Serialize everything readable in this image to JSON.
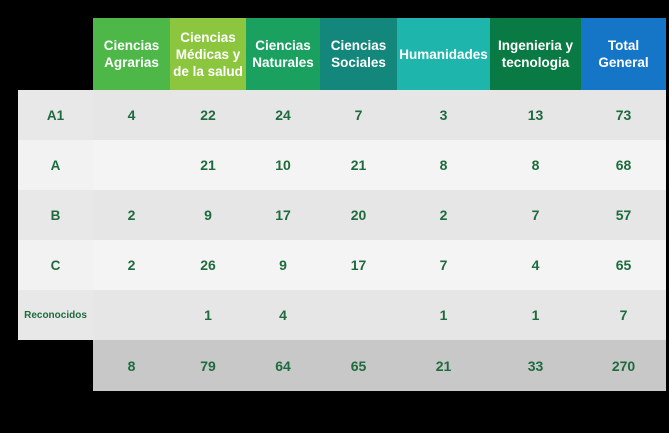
{
  "chart_data": {
    "type": "table",
    "columns": [
      {
        "label": "Ciencias Agrarias",
        "color": "#4db848"
      },
      {
        "label": "Ciencias Médicas y de la salud",
        "color": "#8cc63f"
      },
      {
        "label": "Ciencias Naturales",
        "color": "#1aa160"
      },
      {
        "label": "Ciencias Sociales",
        "color": "#14877d"
      },
      {
        "label": "Humanidades",
        "color": "#1eb5ac"
      },
      {
        "label": "Ingenieria y tecnologia",
        "color": "#0a7a44"
      },
      {
        "label": "Total General",
        "color": "#1576c8"
      }
    ],
    "rows": [
      {
        "label": "A1",
        "values": [
          "4",
          "22",
          "24",
          "7",
          "3",
          "13",
          "73"
        ]
      },
      {
        "label": "A",
        "values": [
          "",
          "21",
          "10",
          "21",
          "8",
          "8",
          "68"
        ]
      },
      {
        "label": "B",
        "values": [
          "2",
          "9",
          "17",
          "20",
          "2",
          "7",
          "57"
        ]
      },
      {
        "label": "C",
        "values": [
          "2",
          "26",
          "9",
          "17",
          "7",
          "4",
          "65"
        ]
      },
      {
        "label": "Reconocidos",
        "values": [
          "",
          "1",
          "4",
          "",
          "1",
          "1",
          "7"
        ]
      }
    ],
    "totals": [
      "8",
      "79",
      "64",
      "65",
      "21",
      "33",
      "270"
    ]
  }
}
